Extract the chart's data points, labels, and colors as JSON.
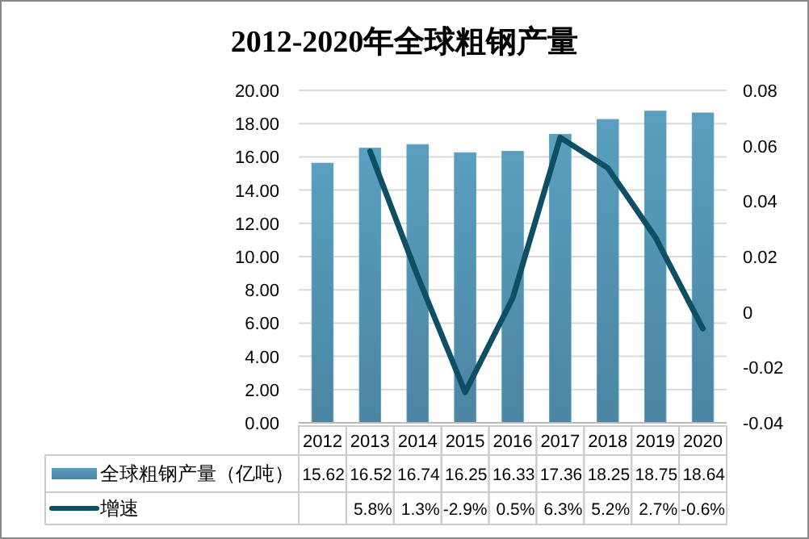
{
  "chart_data": {
    "type": "bar",
    "title": "2012-2020年全球粗钢产量",
    "categories": [
      "2012",
      "2013",
      "2014",
      "2015",
      "2016",
      "2017",
      "2018",
      "2019",
      "2020"
    ],
    "series": [
      {
        "name": "全球粗钢产量（亿吨）",
        "color": "#5a9fc0",
        "values": [
          15.62,
          16.52,
          16.74,
          16.25,
          16.33,
          17.36,
          18.25,
          18.75,
          18.64
        ],
        "value_labels": [
          "15.62",
          "16.52",
          "16.74",
          "16.25",
          "16.33",
          "17.36",
          "18.25",
          "18.75",
          "18.64"
        ]
      },
      {
        "name": "增速",
        "type": "line",
        "axis": "y2",
        "color": "#0e4f63",
        "values": [
          null,
          0.058,
          0.013,
          -0.029,
          0.005,
          0.063,
          0.052,
          0.027,
          -0.006
        ],
        "value_labels": [
          null,
          "5.8%",
          "1.3%",
          "-2.9%",
          "0.5%",
          "6.3%",
          "5.2%",
          "2.7%",
          "-0.6%"
        ]
      }
    ],
    "ylim": [
      0,
      20
    ],
    "yticks": [
      {
        "value": 0,
        "label": "0.00"
      },
      {
        "value": 2,
        "label": "2.00"
      },
      {
        "value": 4,
        "label": "4.00"
      },
      {
        "value": 6,
        "label": "6.00"
      },
      {
        "value": 8,
        "label": "8.00"
      },
      {
        "value": 10,
        "label": "10.00"
      },
      {
        "value": 12,
        "label": "12.00"
      },
      {
        "value": 14,
        "label": "14.00"
      },
      {
        "value": 16,
        "label": "16.00"
      },
      {
        "value": 18,
        "label": "18.00"
      },
      {
        "value": 20,
        "label": "20.00"
      }
    ],
    "y2lim": [
      -0.04,
      0.08
    ],
    "y2ticks": [
      -0.04,
      -0.02,
      0,
      0.02,
      0.04,
      0.06,
      0.08
    ],
    "grid": "y",
    "legend": "bottom left"
  }
}
